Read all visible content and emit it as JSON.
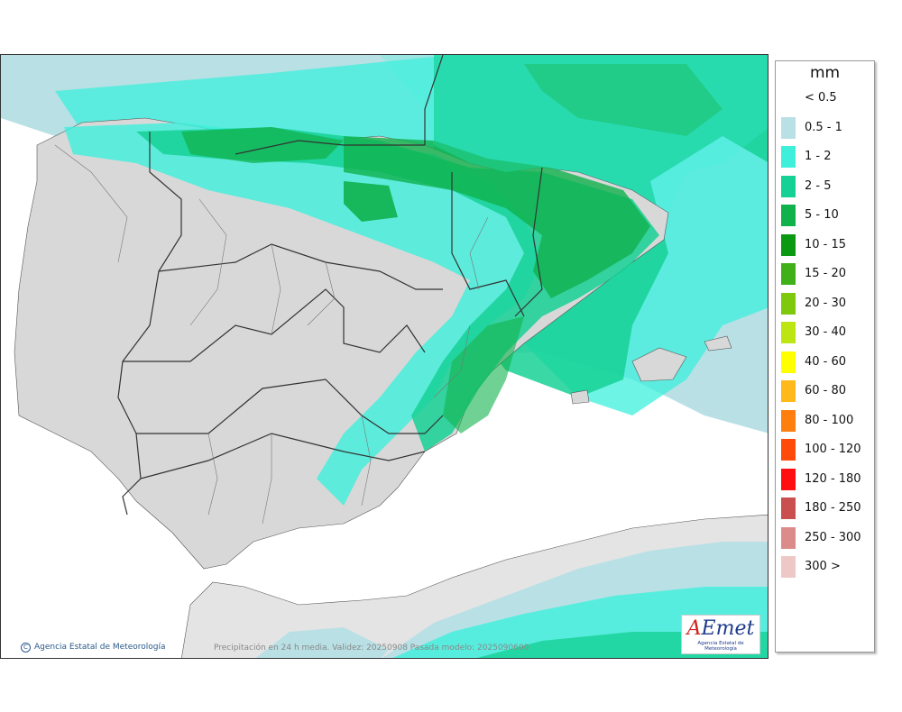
{
  "legend": {
    "unit": "mm",
    "items": [
      {
        "label": "< 0.5",
        "color": "#ffffff"
      },
      {
        "label": "0.5 - 1",
        "color": "#b9e0e5"
      },
      {
        "label": "1 - 2",
        "color": "#3ef0dc"
      },
      {
        "label": "2 - 5",
        "color": "#16d195"
      },
      {
        "label": "5 - 10",
        "color": "#10b24c"
      },
      {
        "label": "10 - 15",
        "color": "#0a9910"
      },
      {
        "label": "15 - 20",
        "color": "#3fb018"
      },
      {
        "label": "20 - 30",
        "color": "#7ec90c"
      },
      {
        "label": "30 - 40",
        "color": "#bde512"
      },
      {
        "label": "40 - 60",
        "color": "#ffff00"
      },
      {
        "label": "60 - 80",
        "color": "#ffb91a"
      },
      {
        "label": "80 - 100",
        "color": "#ff7f0e"
      },
      {
        "label": "100 - 120",
        "color": "#ff4a0a"
      },
      {
        "label": "120 - 180",
        "color": "#ff0f0f"
      },
      {
        "label": "180 - 250",
        "color": "#c9504f"
      },
      {
        "label": "250 - 300",
        "color": "#db8c8a"
      },
      {
        "label": "300 >",
        "color": "#edc8c6"
      }
    ]
  },
  "footer": {
    "credit": "Agencia Estatal de Meteorología",
    "caption": "Precipitación en 24 h media. Validez: 20250908 Pasada modelo: 2025090600"
  },
  "logo": {
    "mark_a": "A",
    "mark_rest": "Emet",
    "subtitle": "Agencia Estatal de Meteorología"
  },
  "colors": {
    "land": "#d8d8d8",
    "land_africa": "#e4e4e4",
    "sea": "#ffffff",
    "borders": "#333333"
  }
}
